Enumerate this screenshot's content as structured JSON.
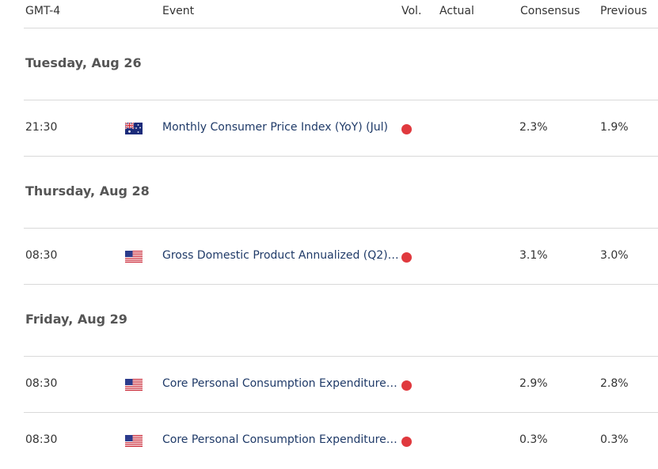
{
  "header": {
    "timezone": "GMT-4",
    "event": "Event",
    "vol": "Vol.",
    "actual": "Actual",
    "consensus": "Consensus",
    "previous": "Previous"
  },
  "days": [
    {
      "label": "Tuesday, Aug 26"
    },
    {
      "label": "Thursday, Aug 28"
    },
    {
      "label": "Friday, Aug 29"
    }
  ],
  "events": [
    {
      "time": "21:30",
      "country": "Australia",
      "flag_icon": "australia-flag-icon",
      "name": "Monthly Consumer Price Index (YoY) (Jul)",
      "volatility": "high",
      "actual": "",
      "consensus": "2.3%",
      "previous": "1.9%"
    },
    {
      "time": "08:30",
      "country": "United States",
      "flag_icon": "us-flag-icon",
      "name": "Gross Domestic Product Annualized (Q2)P…",
      "volatility": "high",
      "actual": "",
      "consensus": "3.1%",
      "previous": "3.0%"
    },
    {
      "time": "08:30",
      "country": "United States",
      "flag_icon": "us-flag-icon",
      "name": "Core Personal Consumption Expenditures …",
      "volatility": "high",
      "actual": "",
      "consensus": "2.9%",
      "previous": "2.8%"
    },
    {
      "time": "08:30",
      "country": "United States",
      "flag_icon": "us-flag-icon",
      "name": "Core Personal Consumption Expenditures …",
      "volatility": "high",
      "actual": "",
      "consensus": "0.3%",
      "previous": "0.3%"
    }
  ],
  "colors": {
    "event_link": "#1f3a68",
    "volatility_high": "#e0393e",
    "divider": "#d9d9d9"
  }
}
